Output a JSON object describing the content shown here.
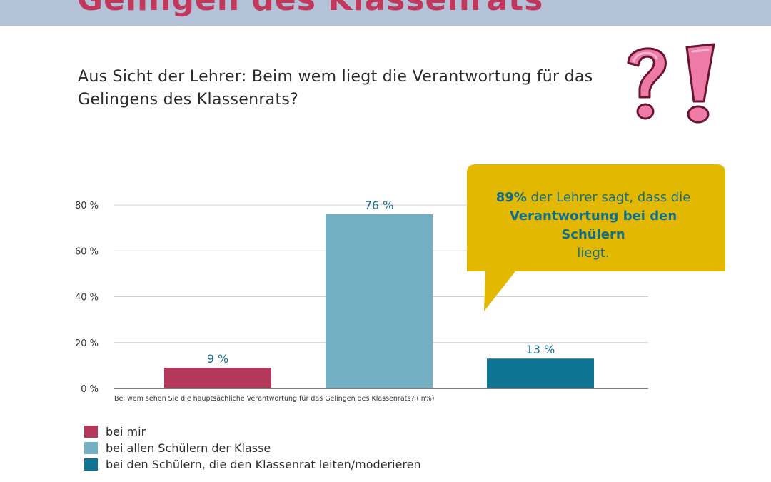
{
  "header": {
    "title": "Gelingen des Klassenrats"
  },
  "question": {
    "line1": "Aus Sicht der Lehrer: Beim wem liegt die Verantwortung für das",
    "line2": "Gelingens des Klassenrats?"
  },
  "callout": {
    "highlight_pct": "89%",
    "part1": " der Lehrer sagt, dass die",
    "highlight_text": "Verantwortung bei den Schülern",
    "part2": "liegt."
  },
  "chart_data": {
    "type": "bar",
    "categories": [
      "bei mir",
      "bei allen Schülern der Klasse",
      "bei den Schülern, die den Klassenrat leiten/moderieren"
    ],
    "values": [
      9,
      76,
      13
    ],
    "data_labels": [
      "9 %",
      "76 %",
      "13 %"
    ],
    "colors": [
      "#b5375a",
      "#73b0c4",
      "#0f7394"
    ],
    "ylim": [
      0,
      80
    ],
    "yticks": [
      0,
      20,
      40,
      60,
      80
    ],
    "ytick_labels": [
      "0 %",
      "20 %",
      "40 %",
      "60 %",
      "80 %"
    ],
    "xlabel": "Bei wem sehen Sie die hauptsächliche Verantwortung für das Gelingen des Klassenrats? (in%)",
    "grid": true,
    "legend_position": "bottom-left"
  },
  "colors": {
    "banner": "#b4c2d8",
    "title": "#c2385d",
    "callout": "#e3b800",
    "callout_text": "#1b6f8a",
    "gridline": "#d0d0d0"
  },
  "icons": [
    "question-exclamation-icon"
  ]
}
